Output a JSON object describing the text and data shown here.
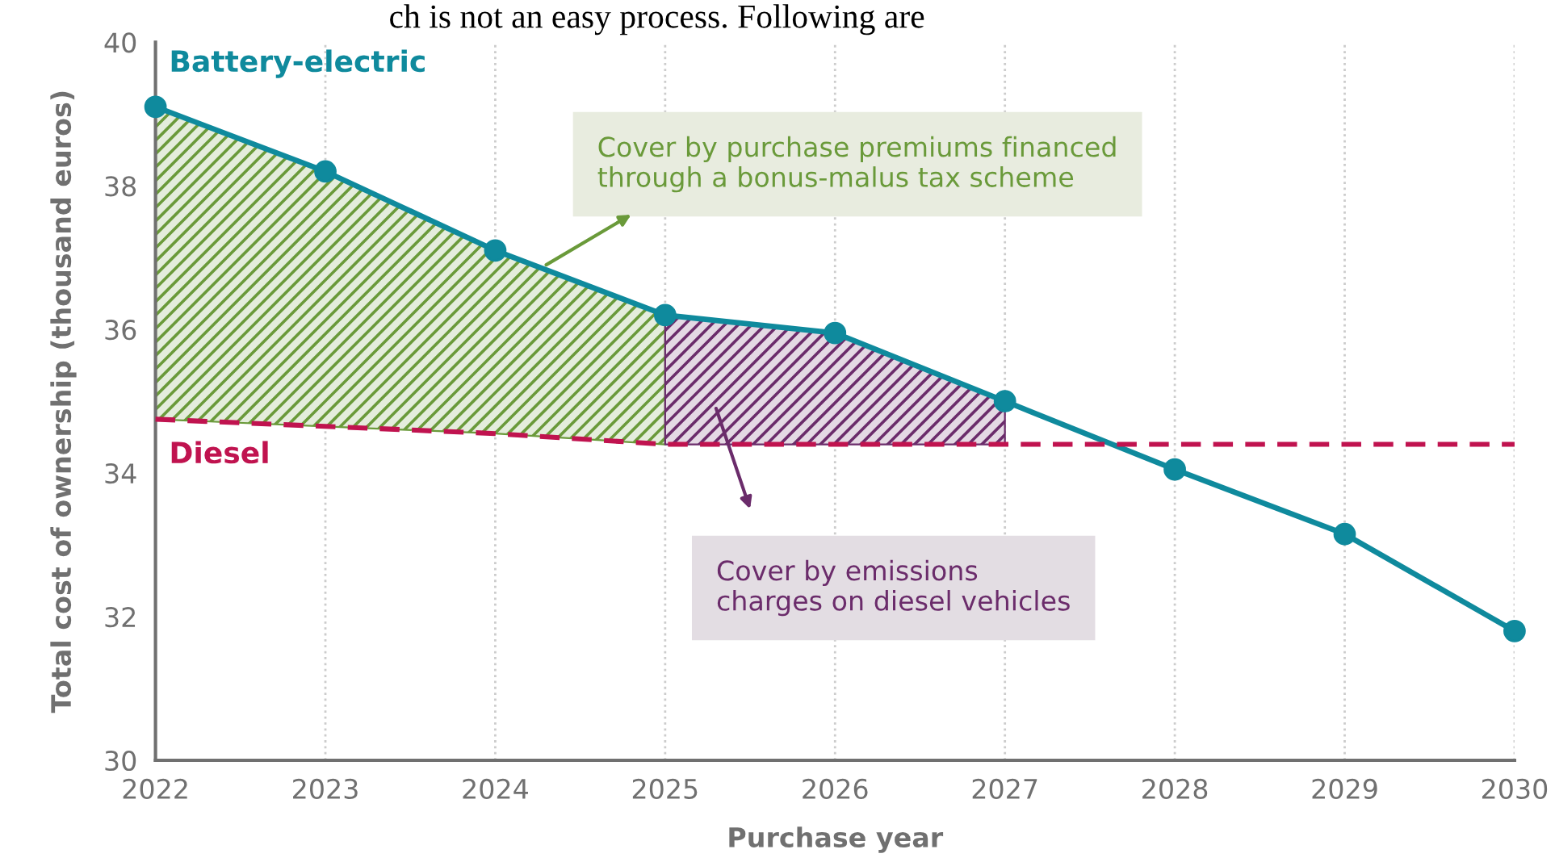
{
  "chart_data": {
    "type": "line",
    "xlabel": "Purchase year",
    "ylabel": "Total cost of ownership (thousand euros)",
    "x": [
      2022,
      2023,
      2024,
      2025,
      2026,
      2027,
      2028,
      2029,
      2030
    ],
    "series": [
      {
        "type": "area",
        "color": "#6a9a3a",
        "x": [
          2022,
          2023,
          2024,
          2025
        ],
        "values": [
          39.1,
          38.2,
          37.1,
          36.2
        ]
      },
      {
        "type": "area",
        "color": "#6b2c6b",
        "x": [
          2025,
          2026,
          2027
        ],
        "values": [
          36.2,
          35.95,
          35.0
        ]
      },
      {
        "name": "Battery-electric",
        "color": "#0f8a9d",
        "marker": "circle",
        "line_style": "solid",
        "values": [
          39.1,
          38.2,
          37.1,
          36.2,
          35.95,
          35.0,
          34.05,
          33.15,
          31.8
        ]
      },
      {
        "name": "Diesel",
        "color": "#c0134f",
        "marker": "none",
        "line_style": "dashed",
        "values": [
          34.75,
          34.65,
          34.55,
          34.4,
          34.4,
          34.4,
          34.4,
          34.4,
          34.4
        ]
      }
    ],
    "xlim": [
      2022,
      2030
    ],
    "xticks": [
      2022,
      2023,
      2024,
      2025,
      2026,
      2027,
      2028,
      2029,
      2030
    ],
    "ylim": [
      30,
      40
    ],
    "yticks": [
      30,
      32,
      34,
      36,
      38,
      40
    ],
    "grid": "x",
    "legend": false,
    "annotations": [
      "ch is not an easy process. Following are",
      "Cover by purchase premiums financed\nthrough a bonus-malus tax scheme",
      "Cover by emissions\ncharges on diesel vehicles"
    ]
  }
}
